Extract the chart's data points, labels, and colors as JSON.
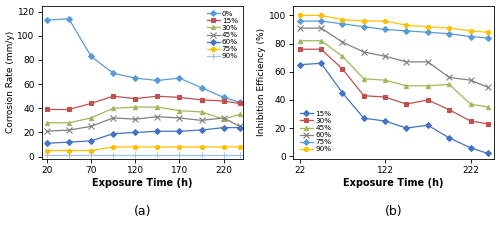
{
  "panel_a": {
    "xlabel": "Exposure Time (h)",
    "ylabel": "Corrosion Rate (mm/y)",
    "xticks": [
      20,
      70,
      120,
      170,
      220
    ],
    "yticks": [
      0,
      20,
      40,
      60,
      80,
      100,
      120
    ],
    "ylim": [
      -2,
      125
    ],
    "xlim": [
      14,
      242
    ],
    "label": "(a)",
    "series": [
      {
        "name": "0%",
        "color": "#5B9BD5",
        "marker": "D",
        "x": [
          20,
          45,
          70,
          95,
          120,
          145,
          170,
          195,
          220,
          238
        ],
        "y": [
          113,
          114,
          83,
          69,
          65,
          63,
          65,
          57,
          49,
          45
        ]
      },
      {
        "name": "15%",
        "color": "#C0504D",
        "marker": "s",
        "x": [
          20,
          45,
          70,
          95,
          120,
          145,
          170,
          195,
          220,
          238
        ],
        "y": [
          39,
          39,
          44,
          50,
          48,
          50,
          49,
          47,
          46,
          44
        ]
      },
      {
        "name": "30%",
        "color": "#9BBB59",
        "marker": "^",
        "x": [
          20,
          45,
          70,
          95,
          120,
          145,
          170,
          195,
          220,
          238
        ],
        "y": [
          28,
          28,
          32,
          40,
          41,
          41,
          38,
          37,
          31,
          35
        ]
      },
      {
        "name": "45%",
        "color": "#808080",
        "marker": "x",
        "x": [
          20,
          45,
          70,
          95,
          120,
          145,
          170,
          195,
          220,
          238
        ],
        "y": [
          21,
          22,
          25,
          32,
          31,
          33,
          32,
          30,
          32,
          25
        ]
      },
      {
        "name": "60%",
        "color": "#4472C4",
        "marker": "D",
        "x": [
          20,
          45,
          70,
          95,
          120,
          145,
          170,
          195,
          220,
          238
        ],
        "y": [
          11,
          12,
          13,
          19,
          20,
          21,
          21,
          22,
          24,
          24
        ]
      },
      {
        "name": "75%",
        "color": "#FFC000",
        "marker": "o",
        "x": [
          20,
          45,
          70,
          95,
          120,
          145,
          170,
          195,
          220,
          238
        ],
        "y": [
          5,
          5,
          5,
          8,
          8,
          8,
          8,
          8,
          8,
          8
        ]
      },
      {
        "name": "90%",
        "color": "#9DC3E6",
        "marker": "+",
        "x": [
          20,
          45,
          70,
          95,
          120,
          145,
          170,
          195,
          220,
          238
        ],
        "y": [
          1,
          1,
          1,
          1,
          1,
          1,
          1,
          1,
          1,
          1
        ]
      }
    ]
  },
  "panel_b": {
    "xlabel": "Exposure Time (h)",
    "ylabel": "Inhibition Efficiency (%)",
    "xticks": [
      22,
      122,
      222
    ],
    "yticks": [
      0,
      20,
      40,
      60,
      80,
      100
    ],
    "ylim": [
      -2,
      107
    ],
    "xlim": [
      14,
      250
    ],
    "label": "(b)",
    "series": [
      {
        "name": "15%",
        "color": "#4472C4",
        "marker": "D",
        "x": [
          22,
          47,
          72,
          97,
          122,
          147,
          172,
          197,
          222,
          242
        ],
        "y": [
          65,
          66,
          45,
          27,
          25,
          20,
          22,
          13,
          6,
          2
        ]
      },
      {
        "name": "30%",
        "color": "#C0504D",
        "marker": "s",
        "x": [
          22,
          47,
          72,
          97,
          122,
          147,
          172,
          197,
          222,
          242
        ],
        "y": [
          76,
          76,
          62,
          43,
          42,
          37,
          40,
          33,
          25,
          23
        ]
      },
      {
        "name": "45%",
        "color": "#9BBB59",
        "marker": "^",
        "x": [
          22,
          47,
          72,
          97,
          122,
          147,
          172,
          197,
          222,
          242
        ],
        "y": [
          82,
          82,
          71,
          55,
          54,
          50,
          50,
          51,
          37,
          35
        ]
      },
      {
        "name": "60%",
        "color": "#808080",
        "marker": "x",
        "x": [
          22,
          47,
          72,
          97,
          122,
          147,
          172,
          197,
          222,
          242
        ],
        "y": [
          91,
          91,
          81,
          74,
          71,
          67,
          67,
          56,
          54,
          49
        ]
      },
      {
        "name": "75%",
        "color": "#5B9BD5",
        "marker": "D",
        "x": [
          22,
          47,
          72,
          97,
          122,
          147,
          172,
          197,
          222,
          242
        ],
        "y": [
          96,
          96,
          94,
          92,
          90,
          89,
          88,
          87,
          85,
          84
        ]
      },
      {
        "name": "90%",
        "color": "#FFC000",
        "marker": "o",
        "x": [
          22,
          47,
          72,
          97,
          122,
          147,
          172,
          197,
          222,
          242
        ],
        "y": [
          100,
          100,
          97,
          96,
          96,
          93,
          92,
          91,
          89,
          88
        ]
      }
    ]
  },
  "background_color": "#ffffff"
}
